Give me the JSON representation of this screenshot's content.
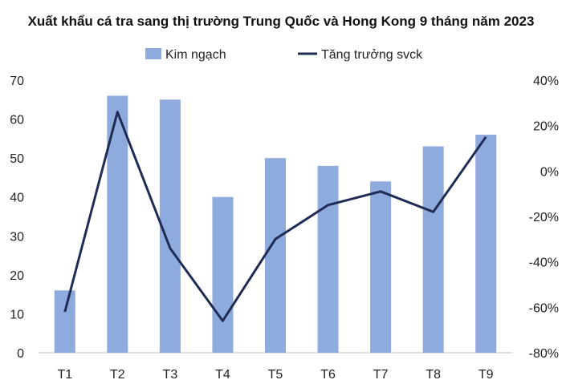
{
  "chart_data": {
    "type": "bar",
    "title": "Xuất khẩu cá tra sang thị trường Trung Quốc và Hong Kong 9 tháng năm 2023",
    "categories": [
      "T1",
      "T2",
      "T3",
      "T4",
      "T5",
      "T6",
      "T7",
      "T8",
      "T9"
    ],
    "series": [
      {
        "name": "Kim ngạch",
        "type": "bar",
        "axis": "left",
        "color": "#8faadc",
        "values": [
          16,
          66,
          65,
          40,
          50,
          48,
          44,
          53,
          56
        ]
      },
      {
        "name": "Tăng trưởng svck",
        "type": "line",
        "axis": "right",
        "color": "#1f2d55",
        "values": [
          -62,
          26,
          -34,
          -66,
          -30,
          -15,
          -9,
          -18,
          15
        ]
      }
    ],
    "ylim": [
      0,
      70
    ],
    "y_ticks": [
      "0",
      "10",
      "20",
      "30",
      "40",
      "50",
      "60",
      "70"
    ],
    "y2lim": [
      -80,
      40
    ],
    "y2_ticks": [
      "-80%",
      "-60%",
      "-40%",
      "-20%",
      "0%",
      "20%",
      "40%"
    ],
    "grid": false,
    "legend_position": "top"
  }
}
